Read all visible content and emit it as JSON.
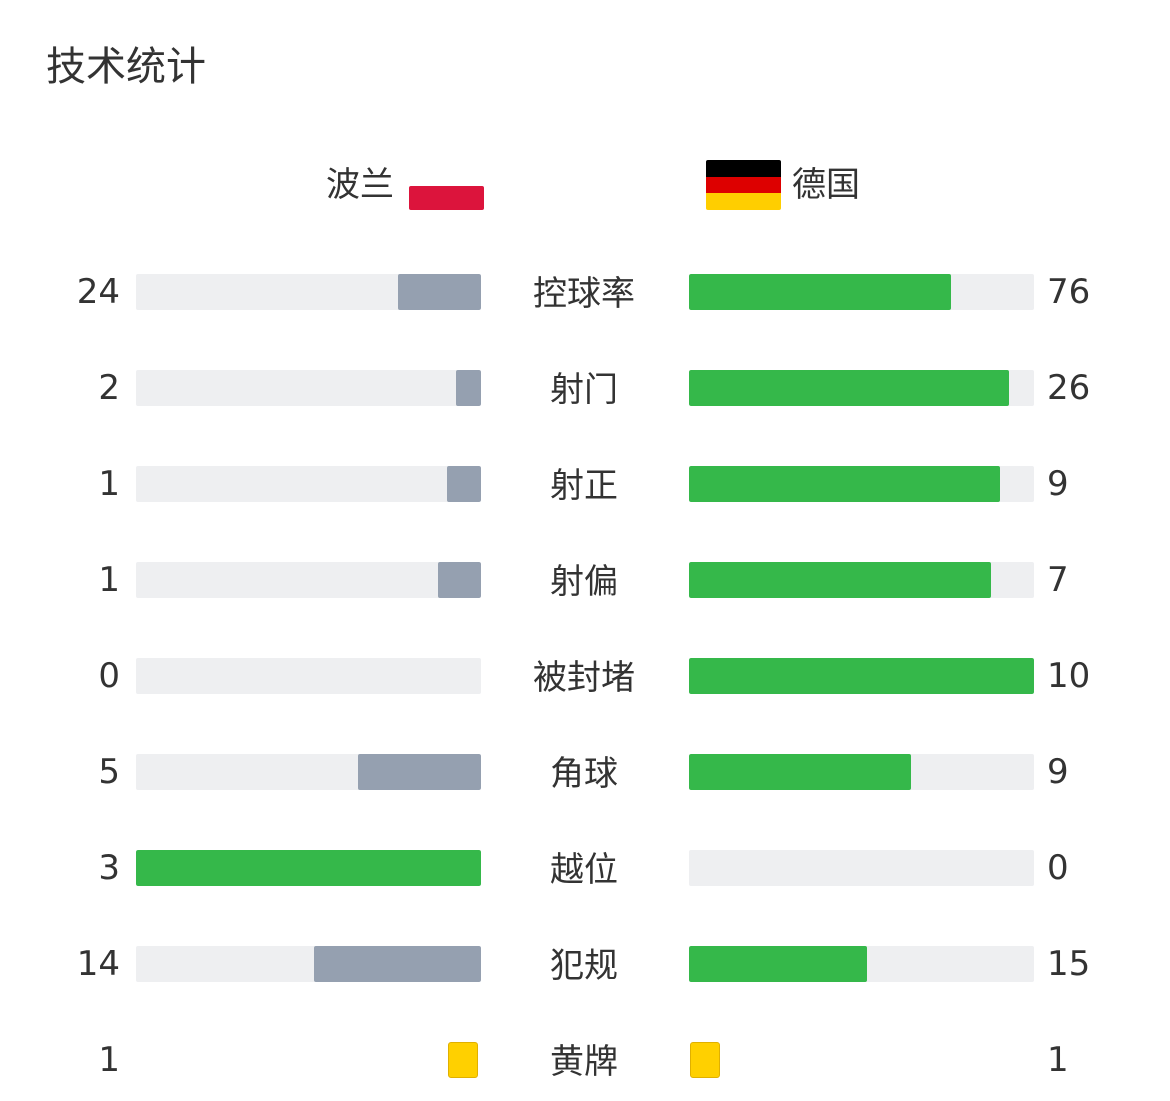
{
  "title": "技术统计",
  "teams": {
    "home": {
      "name": "波兰",
      "flag": "poland-flag"
    },
    "away": {
      "name": "德国",
      "flag": "germany-flag"
    }
  },
  "colors": {
    "leader": "#35b84a",
    "trailer": "#95a0b0",
    "track": "#eeeff1",
    "card": "#ffd000"
  },
  "stats": [
    {
      "label": "控球率",
      "home": "24",
      "away": "76"
    },
    {
      "label": "射门",
      "home": "2",
      "away": "26"
    },
    {
      "label": "射正",
      "home": "1",
      "away": "9"
    },
    {
      "label": "射偏",
      "home": "1",
      "away": "7"
    },
    {
      "label": "被封堵",
      "home": "0",
      "away": "10"
    },
    {
      "label": "角球",
      "home": "5",
      "away": "9"
    },
    {
      "label": "越位",
      "home": "3",
      "away": "0"
    },
    {
      "label": "犯规",
      "home": "14",
      "away": "15"
    },
    {
      "label": "黄牌",
      "home": "1",
      "away": "1",
      "type": "card"
    }
  ]
}
